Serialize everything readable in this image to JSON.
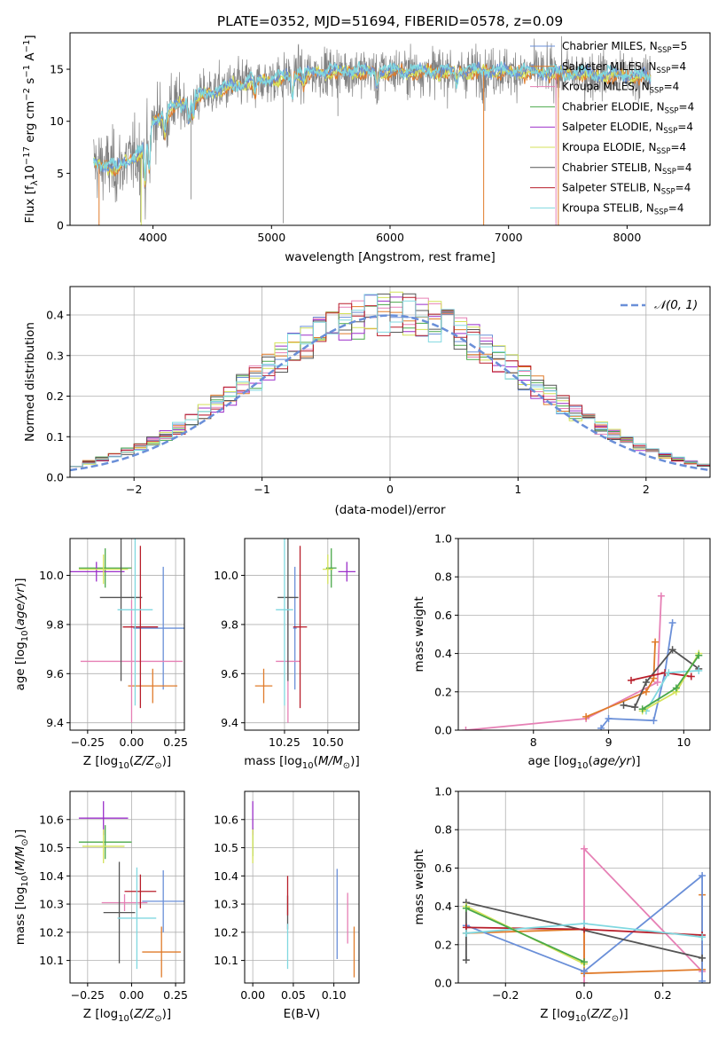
{
  "title": "PLATE=0352, MJD=51694, FIBERID=0578, z=0.09",
  "colors": {
    "Chabrier MILES": "#6a8fd8",
    "Salpeter MILES": "#e07b2a",
    "Kroupa MILES": "#e680b5",
    "Chabrier ELODIE": "#4aa84a",
    "Salpeter ELODIE": "#9b2fc9",
    "Kroupa ELODIE": "#d4e25a",
    "Chabrier STELIB": "#555555",
    "Salpeter STELIB": "#b81e2a",
    "Kroupa STELIB": "#80d8e0",
    "data": "#808080",
    "normal": "#6a8fd8"
  },
  "chart_data": [
    {
      "id": "spectrum",
      "type": "line",
      "xlabel": "wavelength [Angstrom, rest frame]",
      "ylabel": "Flux [f_λ10^{-17} erg cm^{-2} s^{-1} A^{-1}]",
      "xlim": [
        3300,
        8700
      ],
      "ylim": [
        0,
        18.5
      ],
      "xticks": [
        4000,
        5000,
        6000,
        7000,
        8000
      ],
      "yticks": [
        0,
        5,
        10,
        15
      ],
      "legend_position": "top-right",
      "legend": [
        {
          "name": "Chabrier MILES",
          "n": "5"
        },
        {
          "name": "Salpeter MILES",
          "n": "4"
        },
        {
          "name": "Kroupa MILES",
          "n": "4"
        },
        {
          "name": "Chabrier ELODIE",
          "n": "4"
        },
        {
          "name": "Salpeter ELODIE",
          "n": "4"
        },
        {
          "name": "Kroupa ELODIE",
          "n": "4"
        },
        {
          "name": "Chabrier STELIB",
          "n": "4"
        },
        {
          "name": "Salpeter STELIB",
          "n": "4"
        },
        {
          "name": "Kroupa STELIB",
          "n": "4"
        }
      ],
      "wavelength_range": [
        3500,
        8200
      ],
      "continuum": [
        [
          3500,
          6.0
        ],
        [
          3700,
          5.5
        ],
        [
          3900,
          7.0
        ],
        [
          4000,
          10.0
        ],
        [
          4200,
          11.5
        ],
        [
          4500,
          12.8
        ],
        [
          4800,
          13.8
        ],
        [
          5000,
          14.0
        ],
        [
          5200,
          14.5
        ],
        [
          5500,
          14.8
        ],
        [
          6000,
          14.8
        ],
        [
          6500,
          14.8
        ],
        [
          7000,
          14.8
        ],
        [
          7500,
          14.6
        ],
        [
          8000,
          14.4
        ],
        [
          8200,
          14.2
        ]
      ],
      "absorption_lines": [
        [
          3933,
          4.0
        ],
        [
          3968,
          4.0
        ],
        [
          4102,
          2.0
        ],
        [
          4304,
          2.0
        ],
        [
          4340,
          1.5
        ],
        [
          4861,
          1.5
        ],
        [
          5175,
          2.0
        ],
        [
          5270,
          1.0
        ],
        [
          5890,
          1.5
        ],
        [
          6563,
          1.2
        ]
      ],
      "data_spikes": [
        [
          5100,
          0.2
        ],
        [
          3895,
          0.3
        ],
        [
          4320,
          2.5
        ],
        [
          5560,
          10.5
        ],
        [
          6800,
          11.0
        ]
      ]
    },
    {
      "id": "residuals",
      "type": "histogram",
      "xlabel": "(data-model)/error",
      "ylabel": "Normed distribution",
      "xlim": [
        -2.5,
        2.5
      ],
      "ylim": [
        0,
        0.47
      ],
      "xticks": [
        -2,
        -1,
        0,
        1,
        2
      ],
      "yticks": [
        0.0,
        0.1,
        0.2,
        0.3,
        0.4
      ],
      "legend_position": "top-right",
      "normal_label": "N(0,1)",
      "bin_width": 0.1,
      "bin_start": -2.5
    },
    {
      "id": "age-vs-Z",
      "type": "errorbar",
      "xlabel": "Z [log10(Z/Z⊙)]",
      "ylabel": "age  [log10(age/yr)]",
      "xlim": [
        -0.35,
        0.3
      ],
      "ylim": [
        9.37,
        10.15
      ],
      "xticks": [
        -0.25,
        0.0,
        0.25
      ],
      "xticklabels": [
        "−0.25",
        "0.00",
        "0.25"
      ],
      "yticks": [
        9.4,
        9.6,
        9.8,
        10.0
      ],
      "points": [
        {
          "model": "Chabrier MILES",
          "x": 0.18,
          "xerr": 0.17,
          "y": 9.785,
          "yerr": 0.25
        },
        {
          "model": "Salpeter MILES",
          "x": 0.12,
          "xerr": 0.14,
          "y": 9.55,
          "yerr": 0.07
        },
        {
          "model": "Kroupa MILES",
          "x": 0.0,
          "xerr": 0.29,
          "y": 9.65,
          "yerr": 0.25
        },
        {
          "model": "Chabrier ELODIE",
          "x": -0.15,
          "xerr": 0.15,
          "y": 10.03,
          "yerr": 0.08
        },
        {
          "model": "Salpeter ELODIE",
          "x": -0.2,
          "xerr": 0.16,
          "y": 10.015,
          "yerr": 0.04
        },
        {
          "model": "Kroupa ELODIE",
          "x": -0.16,
          "xerr": 0.14,
          "y": 10.025,
          "yerr": 0.06
        },
        {
          "model": "Chabrier STELIB",
          "x": -0.06,
          "xerr": 0.12,
          "y": 9.91,
          "yerr": 0.34
        },
        {
          "model": "Salpeter STELIB",
          "x": 0.05,
          "xerr": 0.1,
          "y": 9.79,
          "yerr": 0.33
        },
        {
          "model": "Kroupa STELIB",
          "x": 0.02,
          "xerr": 0.1,
          "y": 9.86,
          "yerr": 0.39
        }
      ]
    },
    {
      "id": "age-vs-mass",
      "type": "errorbar",
      "xlabel": "mass [log10(M/M⊙)]",
      "ylabel": "",
      "xlim": [
        10.02,
        10.68
      ],
      "ylim": [
        9.37,
        10.15
      ],
      "xticks": [
        10.25,
        10.5
      ],
      "xticklabels": [
        "10.25",
        "10.50"
      ],
      "yticks": [
        9.4,
        9.6,
        9.8,
        10.0
      ],
      "points": [
        {
          "model": "Chabrier MILES",
          "x": 10.31,
          "xerr": 0.01,
          "y": 9.785,
          "yerr": 0.25
        },
        {
          "model": "Salpeter MILES",
          "x": 10.13,
          "xerr": 0.05,
          "y": 9.55,
          "yerr": 0.07
        },
        {
          "model": "Kroupa MILES",
          "x": 10.27,
          "xerr": 0.07,
          "y": 9.65,
          "yerr": 0.25
        },
        {
          "model": "Chabrier ELODIE",
          "x": 10.52,
          "xerr": 0.03,
          "y": 10.03,
          "yerr": 0.08
        },
        {
          "model": "Salpeter ELODIE",
          "x": 10.61,
          "xerr": 0.05,
          "y": 10.015,
          "yerr": 0.04
        },
        {
          "model": "Kroupa ELODIE",
          "x": 10.5,
          "xerr": 0.03,
          "y": 10.025,
          "yerr": 0.06
        },
        {
          "model": "Chabrier STELIB",
          "x": 10.27,
          "xerr": 0.06,
          "y": 9.91,
          "yerr": 0.34
        },
        {
          "model": "Salpeter STELIB",
          "x": 10.34,
          "xerr": 0.04,
          "y": 9.79,
          "yerr": 0.33
        },
        {
          "model": "Kroupa STELIB",
          "x": 10.25,
          "xerr": 0.05,
          "y": 9.86,
          "yerr": 0.39
        }
      ]
    },
    {
      "id": "mass-vs-Z",
      "type": "errorbar",
      "xlabel": "Z [log10(Z/Z⊙)]",
      "ylabel": "mass [log10(M/M⊙)]",
      "xlim": [
        -0.35,
        0.3
      ],
      "ylim": [
        10.02,
        10.7
      ],
      "xticks": [
        -0.25,
        0.0,
        0.25
      ],
      "xticklabels": [
        "−0.25",
        "0.00",
        "0.25"
      ],
      "yticks": [
        10.1,
        10.2,
        10.3,
        10.4,
        10.5,
        10.6
      ],
      "points": [
        {
          "model": "Chabrier MILES",
          "x": 0.18,
          "xerr": 0.12,
          "y": 10.31,
          "yerr": 0.11
        },
        {
          "model": "Salpeter MILES",
          "x": 0.17,
          "xerr": 0.11,
          "y": 10.13,
          "yerr": 0.09
        },
        {
          "model": "Kroupa MILES",
          "x": -0.04,
          "xerr": 0.13,
          "y": 10.305,
          "yerr": 0.03
        },
        {
          "model": "Chabrier ELODIE",
          "x": -0.15,
          "xerr": 0.15,
          "y": 10.52,
          "yerr": 0.06
        },
        {
          "model": "Salpeter ELODIE",
          "x": -0.16,
          "xerr": 0.14,
          "y": 10.605,
          "yerr": 0.06
        },
        {
          "model": "Kroupa ELODIE",
          "x": -0.16,
          "xerr": 0.12,
          "y": 10.505,
          "yerr": 0.06
        },
        {
          "model": "Chabrier STELIB",
          "x": -0.07,
          "xerr": 0.09,
          "y": 10.27,
          "yerr": 0.18
        },
        {
          "model": "Salpeter STELIB",
          "x": 0.05,
          "xerr": 0.09,
          "y": 10.345,
          "yerr": 0.06
        },
        {
          "model": "Kroupa STELIB",
          "x": 0.03,
          "xerr": 0.11,
          "y": 10.25,
          "yerr": 0.18
        }
      ]
    },
    {
      "id": "mass-vs-EBV",
      "type": "errorbar",
      "xlabel": "E(B-V)",
      "ylabel": "",
      "xlim": [
        -0.01,
        0.131
      ],
      "ylim": [
        10.02,
        10.7
      ],
      "xticks": [
        0.0,
        0.05,
        0.1
      ],
      "xticklabels": [
        "0.00",
        "0.05",
        "0.10"
      ],
      "yticks": [
        10.1,
        10.2,
        10.3,
        10.4,
        10.5,
        10.6
      ],
      "points": [
        {
          "model": "Chabrier MILES",
          "x": 0.104,
          "xerr": 0.0,
          "y": 10.265,
          "yerr": 0.16
        },
        {
          "model": "Salpeter MILES",
          "x": 0.125,
          "xerr": 0.0,
          "y": 10.13,
          "yerr": 0.09
        },
        {
          "model": "Kroupa MILES",
          "x": 0.117,
          "xerr": 0.0,
          "y": 10.25,
          "yerr": 0.09
        },
        {
          "model": "Chabrier ELODIE",
          "x": 0.0,
          "xerr": 0.0,
          "y": 10.52,
          "yerr": 0.05
        },
        {
          "model": "Salpeter ELODIE",
          "x": 0.0,
          "xerr": 0.0,
          "y": 10.605,
          "yerr": 0.06
        },
        {
          "model": "Kroupa ELODIE",
          "x": 0.0,
          "xerr": 0.0,
          "y": 10.505,
          "yerr": 0.06
        },
        {
          "model": "Chabrier STELIB",
          "x": 0.043,
          "xerr": 0.0,
          "y": 10.27,
          "yerr": 0.06
        },
        {
          "model": "Salpeter STELIB",
          "x": 0.043,
          "xerr": 0.0,
          "y": 10.33,
          "yerr": 0.07
        },
        {
          "model": "Kroupa STELIB",
          "x": 0.043,
          "xerr": 0.0,
          "y": 10.15,
          "yerr": 0.08
        }
      ]
    },
    {
      "id": "weight-vs-age",
      "type": "line",
      "xlabel": "age  [log10(age/yr)]",
      "ylabel": "mass weight",
      "xlim": [
        7.0,
        10.35
      ],
      "ylim": [
        0.0,
        1.0
      ],
      "xticks": [
        8,
        9,
        10
      ],
      "xticklabels": [
        "8",
        "9",
        "10"
      ],
      "yticks": [
        0.0,
        0.2,
        0.4,
        0.6,
        0.8,
        1.0
      ],
      "yticklabels": [
        "0.0",
        "0.2",
        "0.4",
        "0.6",
        "0.8",
        "1.0"
      ],
      "series": [
        {
          "model": "Kroupa MILES",
          "points": [
            [
              7.1,
              0.0
            ],
            [
              8.7,
              0.06
            ],
            [
              9.65,
              0.25
            ],
            [
              9.7,
              0.7
            ]
          ]
        },
        {
          "model": "Salpeter MILES",
          "points": [
            [
              8.7,
              0.07
            ],
            [
              9.5,
              0.2
            ],
            [
              9.6,
              0.27
            ],
            [
              9.62,
              0.46
            ]
          ]
        },
        {
          "model": "Chabrier MILES",
          "points": [
            [
              8.9,
              0.01
            ],
            [
              9.0,
              0.06
            ],
            [
              9.6,
              0.05
            ],
            [
              9.75,
              0.3
            ],
            [
              9.85,
              0.56
            ]
          ]
        },
        {
          "model": "Chabrier STELIB",
          "points": [
            [
              9.2,
              0.13
            ],
            [
              9.35,
              0.12
            ],
            [
              9.5,
              0.25
            ],
            [
              9.85,
              0.42
            ],
            [
              10.2,
              0.32
            ]
          ]
        },
        {
          "model": "Salpeter STELIB",
          "points": [
            [
              9.3,
              0.26
            ],
            [
              9.75,
              0.3
            ],
            [
              10.1,
              0.28
            ]
          ]
        },
        {
          "model": "Kroupa STELIB",
          "points": [
            [
              9.5,
              0.1
            ],
            [
              9.8,
              0.3
            ],
            [
              10.2,
              0.31
            ]
          ]
        },
        {
          "model": "Kroupa ELODIE",
          "points": [
            [
              9.45,
              0.1
            ],
            [
              9.9,
              0.2
            ],
            [
              10.2,
              0.4
            ]
          ]
        },
        {
          "model": "Chabrier ELODIE",
          "points": [
            [
              9.45,
              0.11
            ],
            [
              9.9,
              0.22
            ],
            [
              10.2,
              0.39
            ]
          ]
        }
      ]
    },
    {
      "id": "weight-vs-Z",
      "type": "line",
      "xlabel": "Z [log10(Z/Z⊙)]",
      "ylabel": "mass weight",
      "xlim": [
        -0.32,
        0.32
      ],
      "ylim": [
        0.0,
        1.0
      ],
      "xticks": [
        -0.2,
        0.0,
        0.2
      ],
      "xticklabels": [
        "−0.2",
        "0.0",
        "0.2"
      ],
      "yticks": [
        0.0,
        0.2,
        0.4,
        0.6,
        0.8,
        1.0
      ],
      "yticklabels": [
        "0.0",
        "0.2",
        "0.4",
        "0.6",
        "0.8",
        "1.0"
      ],
      "series": [
        {
          "model": "Kroupa MILES",
          "points": [
            [
              0.0,
              0.0
            ],
            [
              0.0,
              0.7
            ],
            [
              0.3,
              0.06
            ]
          ]
        },
        {
          "model": "Salpeter MILES",
          "points": [
            [
              -0.3,
              0.26
            ],
            [
              0.0,
              0.28
            ],
            [
              0.0,
              0.05
            ],
            [
              0.3,
              0.07
            ],
            [
              0.3,
              0.46
            ]
          ]
        },
        {
          "model": "Chabrier MILES",
          "points": [
            [
              -0.3,
              0.3
            ],
            [
              0.0,
              0.06
            ],
            [
              0.3,
              0.56
            ],
            [
              0.3,
              0.01
            ]
          ]
        },
        {
          "model": "Chabrier STELIB",
          "points": [
            [
              -0.3,
              0.12
            ],
            [
              -0.3,
              0.42
            ],
            [
              0.3,
              0.13
            ]
          ]
        },
        {
          "model": "Salpeter STELIB",
          "points": [
            [
              -0.3,
              0.29
            ],
            [
              0.0,
              0.28
            ],
            [
              0.3,
              0.25
            ]
          ]
        },
        {
          "model": "Kroupa STELIB",
          "points": [
            [
              -0.3,
              0.26
            ],
            [
              0.0,
              0.31
            ],
            [
              0.3,
              0.24
            ]
          ]
        },
        {
          "model": "Kroupa ELODIE",
          "points": [
            [
              -0.3,
              0.4
            ],
            [
              0.0,
              0.1
            ]
          ]
        },
        {
          "model": "Chabrier ELODIE",
          "points": [
            [
              -0.3,
              0.39
            ],
            [
              0.0,
              0.11
            ]
          ]
        }
      ]
    }
  ]
}
